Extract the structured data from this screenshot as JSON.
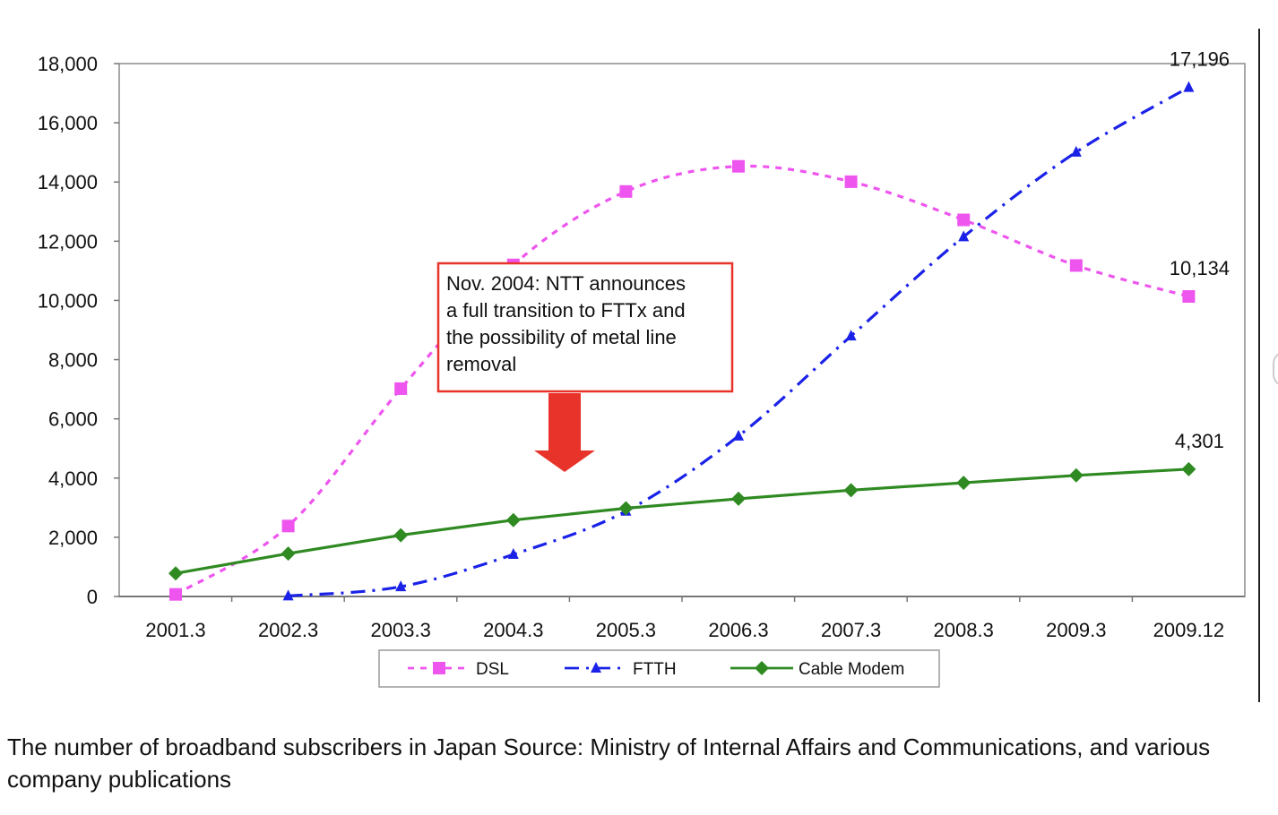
{
  "chart_data": {
    "type": "line",
    "categories": [
      "2001.3",
      "2002.3",
      "2003.3",
      "2004.3",
      "2005.3",
      "2006.3",
      "2007.3",
      "2008.3",
      "2009.3",
      "2009.12"
    ],
    "ylim": [
      0,
      18000
    ],
    "yticks": [
      0,
      2000,
      4000,
      6000,
      8000,
      10000,
      12000,
      14000,
      16000,
      18000
    ],
    "ytick_labels": [
      "0",
      "2,000",
      "4,000",
      "6,000",
      "8,000",
      "10,000",
      "12,000",
      "14,000",
      "16,000",
      "18,000"
    ],
    "grid": true,
    "legend_position": "bottom",
    "series": [
      {
        "name": "DSL",
        "color": "#ee55ee",
        "dash": "dotted",
        "marker": "square",
        "values": [
          70,
          2380,
          7020,
          11200,
          13680,
          14530,
          14010,
          12720,
          11180,
          10134
        ]
      },
      {
        "name": "FTTH",
        "color": "#1a22e8",
        "dash": "dash-dot",
        "marker": "triangle",
        "values": [
          null,
          20,
          330,
          1420,
          2880,
          5420,
          8800,
          12150,
          15010,
          17196
        ]
      },
      {
        "name": "Cable Modem",
        "color": "#2f8a22",
        "dash": "solid",
        "marker": "diamond",
        "values": [
          780,
          1450,
          2070,
          2580,
          2980,
          3300,
          3590,
          3840,
          4090,
          4301
        ]
      }
    ],
    "end_labels": [
      {
        "series": "FTTH",
        "text": "17,196"
      },
      {
        "series": "DSL",
        "text": "10,134"
      },
      {
        "series": "Cable Modem",
        "text": "4,301"
      }
    ],
    "annotation": {
      "lines": [
        "Nov. 2004: NTT announces",
        "a full transition to FTTx and",
        "the possibility of metal line",
        "removal"
      ],
      "border_color": "#e8332a",
      "arrow_color": "#e8332a"
    }
  },
  "caption": "The number of broadband subscribers in Japan Source: Ministry of Internal Affairs and Communications, and various company publications"
}
